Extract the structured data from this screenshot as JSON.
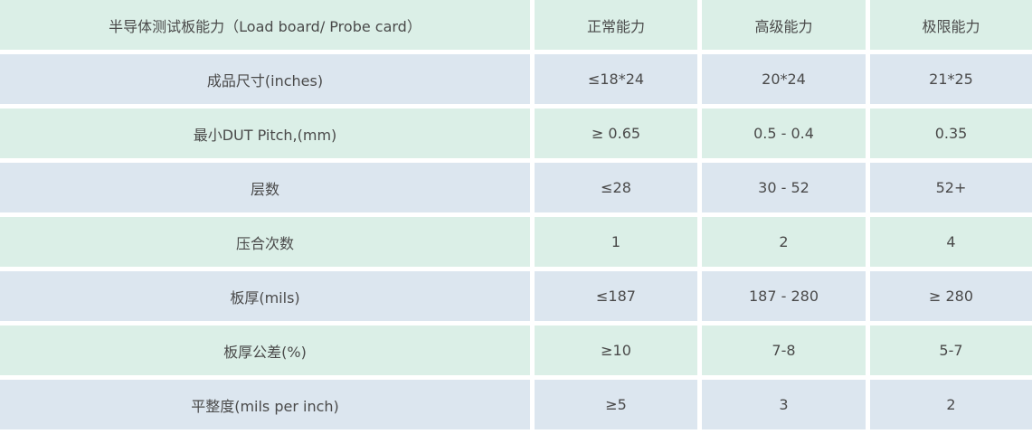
{
  "header": [
    "半导体测试板能力（Load board/ Probe card）",
    "正常能力",
    "高级能力",
    "极限能力"
  ],
  "rows": [
    [
      "成品尺寸(inches)",
      "≤18*24",
      "20*24",
      "21*25"
    ],
    [
      "最小DUT Pitch,(mm)",
      "≥ 0.65",
      "0.5 - 0.4",
      "0.35"
    ],
    [
      "层数",
      "≤28",
      "30 - 52",
      "52+"
    ],
    [
      "压合次数",
      "1",
      "2",
      "4"
    ],
    [
      "板厚(mils)",
      "≤187",
      "187 - 280",
      "≥ 280"
    ],
    [
      "板厚公差(%)",
      "≥10",
      "7-8",
      "5-7"
    ],
    [
      "平整度(mils per inch)",
      "≥5",
      "3",
      "2"
    ]
  ],
  "colors": {
    "green_row": "#dbefe7",
    "blue_row": "#dce6ef",
    "text": "#4a4a4a"
  }
}
